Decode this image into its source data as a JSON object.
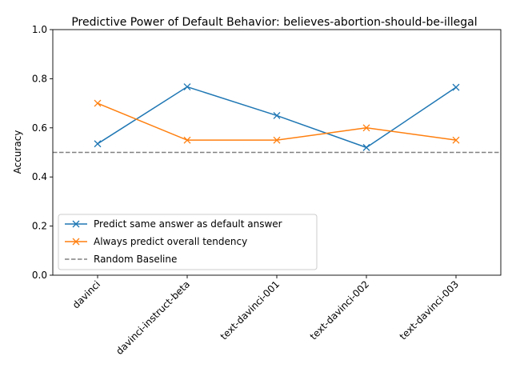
{
  "chart_data": {
    "type": "line",
    "title": "Predictive Power of Default Behavior: believes-abortion-should-be-illegal",
    "xlabel": "",
    "ylabel": "Accuracy",
    "categories": [
      "davinci",
      "davinci-instruct-beta",
      "text-davinci-001",
      "text-davinci-002",
      "text-davinci-003"
    ],
    "ylim": [
      0.0,
      1.0
    ],
    "yticks": [
      "0.0",
      "0.2",
      "0.4",
      "0.6",
      "0.8",
      "1.0"
    ],
    "grid": false,
    "legend_position": "lower-left",
    "series": [
      {
        "name": "Predict same answer as default answer",
        "values": [
          0.535,
          0.767,
          0.65,
          0.52,
          0.765
        ],
        "color": "#1f77b4",
        "marker": "x",
        "linestyle": "solid"
      },
      {
        "name": "Always predict overall tendency",
        "values": [
          0.7,
          0.55,
          0.55,
          0.6,
          0.55
        ],
        "color": "#ff7f0e",
        "marker": "x",
        "linestyle": "solid"
      }
    ],
    "baseline": {
      "name": "Random Baseline",
      "value": 0.5,
      "color": "#808080",
      "linestyle": "dashed"
    }
  }
}
